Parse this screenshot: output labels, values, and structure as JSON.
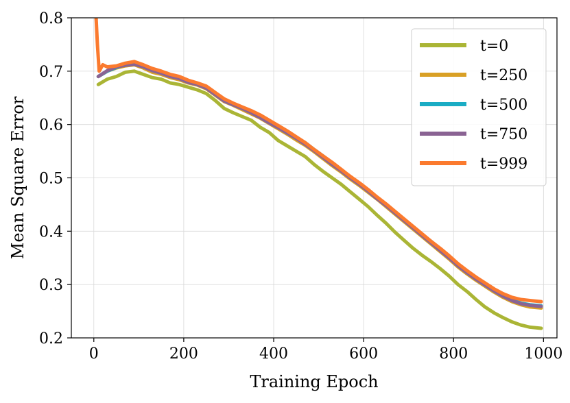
{
  "chart_data": {
    "type": "line",
    "title": "",
    "xlabel": "Training Epoch",
    "ylabel": "Mean Square Error",
    "xlim": [
      -50,
      1030
    ],
    "ylim": [
      0.2,
      0.8
    ],
    "xticks": [
      0,
      200,
      400,
      600,
      800,
      1000
    ],
    "xtick_labels": [
      "0",
      "200",
      "400",
      "600",
      "800",
      "1000"
    ],
    "yticks": [
      0.2,
      0.3,
      0.4,
      0.5,
      0.6,
      0.7,
      0.8
    ],
    "ytick_labels": [
      "0.2",
      "0.3",
      "0.4",
      "0.5",
      "0.6",
      "0.7",
      "0.8"
    ],
    "grid": true,
    "legend_position": "top-right",
    "series": [
      {
        "name": "t=0",
        "color": "#aab535",
        "x": [
          10,
          30,
          50,
          70,
          90,
          110,
          130,
          150,
          170,
          190,
          210,
          230,
          250,
          270,
          290,
          310,
          330,
          350,
          370,
          390,
          410,
          430,
          450,
          470,
          490,
          510,
          530,
          550,
          570,
          590,
          610,
          630,
          650,
          670,
          690,
          710,
          730,
          750,
          770,
          790,
          810,
          830,
          850,
          870,
          890,
          910,
          930,
          950,
          970,
          995
        ],
        "values": [
          0.675,
          0.685,
          0.69,
          0.698,
          0.7,
          0.694,
          0.688,
          0.685,
          0.678,
          0.675,
          0.67,
          0.665,
          0.658,
          0.645,
          0.63,
          0.622,
          0.615,
          0.608,
          0.595,
          0.585,
          0.57,
          0.56,
          0.55,
          0.54,
          0.525,
          0.512,
          0.5,
          0.488,
          0.474,
          0.46,
          0.446,
          0.43,
          0.415,
          0.398,
          0.383,
          0.368,
          0.355,
          0.343,
          0.33,
          0.316,
          0.3,
          0.287,
          0.272,
          0.258,
          0.247,
          0.238,
          0.23,
          0.224,
          0.22,
          0.218
        ]
      },
      {
        "name": "t=250",
        "color": "#d9a025",
        "x": [
          10,
          30,
          50,
          70,
          90,
          110,
          130,
          150,
          170,
          190,
          210,
          230,
          250,
          270,
          290,
          310,
          330,
          350,
          370,
          390,
          410,
          430,
          450,
          470,
          490,
          510,
          530,
          550,
          570,
          590,
          610,
          630,
          650,
          670,
          690,
          710,
          730,
          750,
          770,
          790,
          810,
          830,
          850,
          870,
          890,
          910,
          930,
          950,
          970,
          995
        ],
        "values": [
          0.69,
          0.7,
          0.706,
          0.71,
          0.712,
          0.706,
          0.698,
          0.694,
          0.688,
          0.684,
          0.678,
          0.674,
          0.667,
          0.655,
          0.643,
          0.636,
          0.628,
          0.62,
          0.612,
          0.602,
          0.592,
          0.582,
          0.571,
          0.561,
          0.549,
          0.536,
          0.523,
          0.511,
          0.498,
          0.486,
          0.473,
          0.46,
          0.446,
          0.432,
          0.418,
          0.404,
          0.39,
          0.376,
          0.362,
          0.348,
          0.333,
          0.32,
          0.308,
          0.297,
          0.286,
          0.276,
          0.268,
          0.262,
          0.258,
          0.256
        ]
      },
      {
        "name": "t=500",
        "color": "#1aacc4",
        "x": [
          10,
          30,
          50,
          70,
          90,
          110,
          130,
          150,
          170,
          190,
          210,
          230,
          250,
          270,
          290,
          310,
          330,
          350,
          370,
          390,
          410,
          430,
          450,
          470,
          490,
          510,
          530,
          550,
          570,
          590,
          610,
          630,
          650,
          670,
          690,
          710,
          730,
          750,
          770,
          790,
          810,
          830,
          850,
          870,
          890,
          910,
          930,
          950,
          970,
          995
        ],
        "values": [
          0.69,
          0.7,
          0.707,
          0.712,
          0.715,
          0.71,
          0.703,
          0.698,
          0.692,
          0.688,
          0.68,
          0.676,
          0.669,
          0.658,
          0.646,
          0.639,
          0.632,
          0.625,
          0.615,
          0.605,
          0.596,
          0.586,
          0.576,
          0.566,
          0.553,
          0.541,
          0.528,
          0.515,
          0.502,
          0.49,
          0.477,
          0.463,
          0.45,
          0.436,
          0.422,
          0.408,
          0.394,
          0.381,
          0.367,
          0.352,
          0.337,
          0.324,
          0.311,
          0.3,
          0.289,
          0.279,
          0.271,
          0.265,
          0.262,
          0.26
        ]
      },
      {
        "name": "t=750",
        "color": "#8a6393",
        "x": [
          10,
          30,
          50,
          70,
          90,
          110,
          130,
          150,
          170,
          190,
          210,
          230,
          250,
          270,
          290,
          310,
          330,
          350,
          370,
          390,
          410,
          430,
          450,
          470,
          490,
          510,
          530,
          550,
          570,
          590,
          610,
          630,
          650,
          670,
          690,
          710,
          730,
          750,
          770,
          790,
          810,
          830,
          850,
          870,
          890,
          910,
          930,
          950,
          970,
          995
        ],
        "values": [
          0.69,
          0.701,
          0.708,
          0.711,
          0.713,
          0.708,
          0.701,
          0.696,
          0.69,
          0.686,
          0.679,
          0.675,
          0.668,
          0.656,
          0.644,
          0.637,
          0.63,
          0.622,
          0.613,
          0.603,
          0.594,
          0.584,
          0.574,
          0.563,
          0.551,
          0.538,
          0.525,
          0.513,
          0.5,
          0.488,
          0.475,
          0.461,
          0.448,
          0.434,
          0.42,
          0.406,
          0.392,
          0.378,
          0.364,
          0.35,
          0.335,
          0.322,
          0.31,
          0.299,
          0.288,
          0.278,
          0.27,
          0.264,
          0.261,
          0.259
        ]
      },
      {
        "name": "t=999",
        "color": "#fb7a2e",
        "x": [
          5,
          8,
          12,
          20,
          30,
          50,
          70,
          90,
          110,
          130,
          150,
          170,
          190,
          210,
          230,
          250,
          270,
          290,
          310,
          330,
          350,
          370,
          390,
          410,
          430,
          450,
          470,
          490,
          510,
          530,
          550,
          570,
          590,
          610,
          630,
          650,
          670,
          690,
          710,
          730,
          750,
          770,
          790,
          810,
          830,
          850,
          870,
          890,
          910,
          930,
          950,
          970,
          995
        ],
        "values": [
          0.8,
          0.75,
          0.7,
          0.712,
          0.708,
          0.71,
          0.715,
          0.718,
          0.712,
          0.705,
          0.7,
          0.694,
          0.69,
          0.683,
          0.678,
          0.672,
          0.66,
          0.648,
          0.64,
          0.633,
          0.626,
          0.618,
          0.608,
          0.598,
          0.588,
          0.577,
          0.566,
          0.553,
          0.541,
          0.529,
          0.516,
          0.503,
          0.491,
          0.478,
          0.464,
          0.451,
          0.437,
          0.423,
          0.409,
          0.395,
          0.381,
          0.368,
          0.354,
          0.339,
          0.326,
          0.314,
          0.303,
          0.292,
          0.283,
          0.276,
          0.272,
          0.27,
          0.268
        ]
      }
    ]
  }
}
